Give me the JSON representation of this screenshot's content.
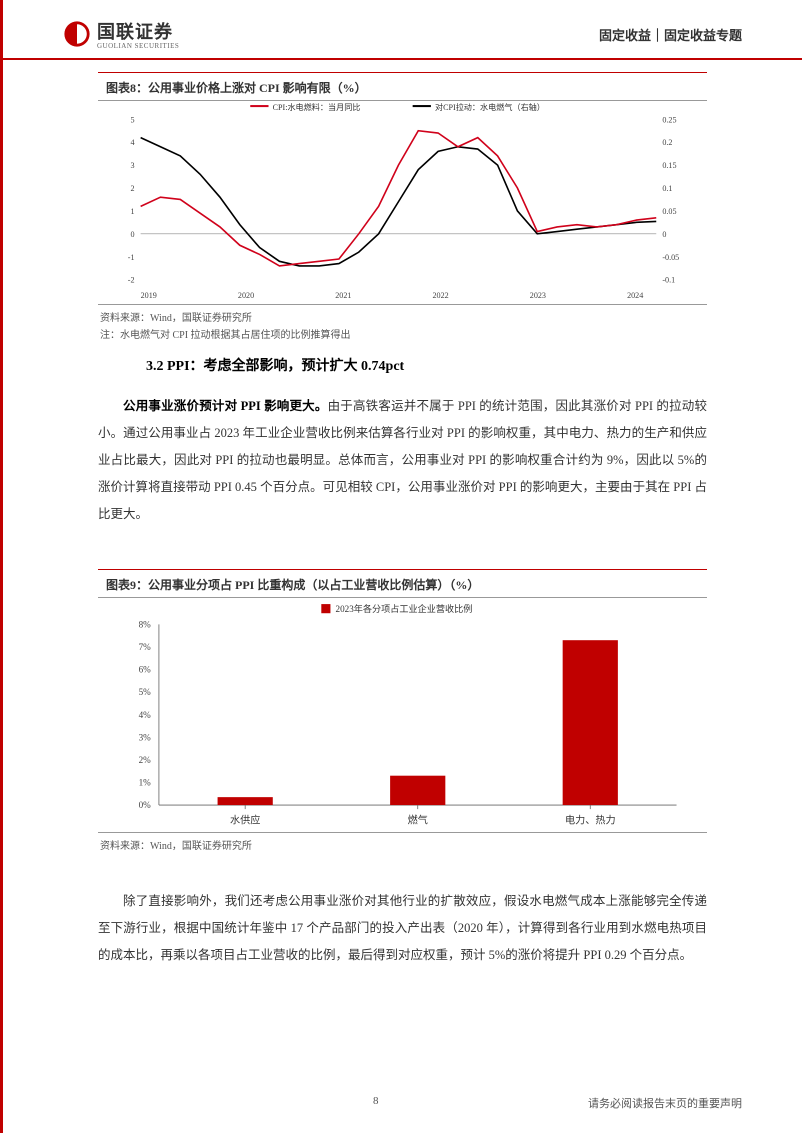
{
  "header": {
    "logo_cn": "国联证券",
    "logo_en": "GUOLIAN SECURITIES",
    "right_text": "固定收益｜固定收益专题"
  },
  "chart8": {
    "title": "图表8：公用事业价格上涨对 CPI 影响有限（%）",
    "type": "line",
    "legend": [
      {
        "label": "CPI:水电燃料：当月同比",
        "color": "#d0021b"
      },
      {
        "label": "对CPI拉动：水电燃气（右轴）",
        "color": "#000000"
      }
    ],
    "x_labels": [
      "2019",
      "2020",
      "2021",
      "2022",
      "2023",
      "2024"
    ],
    "y_left": {
      "min": -2,
      "max": 5,
      "ticks": [
        -2,
        -1,
        0,
        1,
        2,
        3,
        4,
        5
      ]
    },
    "y_right": {
      "min": -0.1,
      "max": 0.25,
      "ticks": [
        -0.1,
        -0.05,
        0,
        0.05,
        0.1,
        0.15,
        0.2,
        0.25
      ]
    },
    "series_red": [
      1.2,
      1.6,
      1.5,
      0.9,
      0.3,
      -0.5,
      -0.9,
      -1.4,
      -1.3,
      -1.2,
      -1.1,
      0.0,
      1.2,
      3.0,
      4.5,
      4.4,
      3.8,
      4.2,
      3.4,
      2.0,
      0.1,
      0.3,
      0.4,
      0.3,
      0.4,
      0.6,
      0.7
    ],
    "series_black": [
      0.21,
      0.19,
      0.17,
      0.13,
      0.08,
      0.02,
      -0.03,
      -0.06,
      -0.07,
      -0.07,
      -0.065,
      -0.04,
      0.0,
      0.07,
      0.14,
      0.18,
      0.19,
      0.185,
      0.15,
      0.05,
      0.0,
      0.005,
      0.01,
      0.015,
      0.02,
      0.025,
      0.027
    ],
    "background_color": "#ffffff",
    "grid_color": "#d9d9d9",
    "source": "资料来源：Wind，国联证券研究所",
    "note": "注：水电燃气对 CPI 拉动根据其占居住项的比例推算得出"
  },
  "section": {
    "heading": "3.2 PPI：考虑全部影响，预计扩大 0.74pct",
    "para1_bold": "公用事业涨价预计对 PPI 影响更大。",
    "para1_rest": "由于高铁客运并不属于 PPI 的统计范围，因此其涨价对 PPI 的拉动较小。通过公用事业占 2023 年工业企业营收比例来估算各行业对 PPI 的影响权重，其中电力、热力的生产和供应业占比最大，因此对 PPI 的拉动也最明显。总体而言，公用事业对 PPI 的影响权重合计约为 9%，因此以 5%的涨价计算将直接带动 PPI  0.45 个百分点。可见相较 CPI，公用事业涨价对 PPI 的影响更大，主要由于其在 PPI 占比更大。"
  },
  "chart9": {
    "title": "图表9：公用事业分项占 PPI 比重构成（以占工业营收比例估算）（%）",
    "type": "bar",
    "legend_label": "2023年各分项占工业企业营收比例",
    "legend_color": "#c00000",
    "categories": [
      "水供应",
      "燃气",
      "电力、热力"
    ],
    "values": [
      0.35,
      1.3,
      7.3
    ],
    "bar_color": "#c00000",
    "ylim": [
      0,
      8
    ],
    "ytick_step": 1,
    "y_suffix": "%",
    "background_color": "#ffffff",
    "source": "资料来源：Wind，国联证券研究所"
  },
  "para2": "除了直接影响外，我们还考虑公用事业涨价对其他行业的扩散效应，假设水电燃气成本上涨能够完全传递至下游行业，根据中国统计年鉴中 17 个产品部门的投入产出表（2020 年），计算得到各行业用到水燃电热项目的成本比，再乘以各项目占工业营收的比例，最后得到对应权重，预计 5%的涨价将提升 PPI  0.29 个百分点。",
  "footer": {
    "page": "8",
    "disclaimer": "请务必阅读报告末页的重要声明"
  }
}
